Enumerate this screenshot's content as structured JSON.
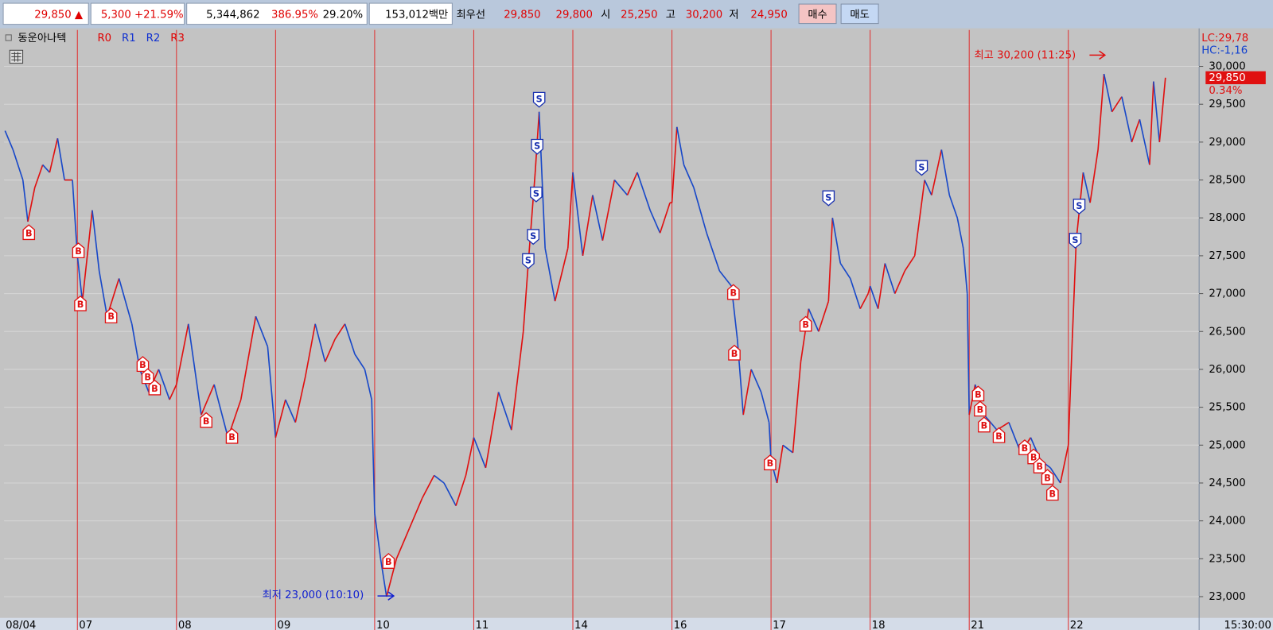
{
  "toolbar": {
    "items": [
      {
        "text": "29,850 ▲",
        "color": "#e00000"
      },
      {
        "text": "5,300 +21.59%",
        "color": "#e00000"
      },
      {
        "text": "5,344,862",
        "color": "#000000"
      },
      {
        "text": "386.95%",
        "color": "#e00000"
      },
      {
        "text": "29.20%",
        "color": "#000000"
      },
      {
        "text": "153,012백만",
        "color": "#000000"
      },
      {
        "text": "최우선",
        "color": "#000000"
      },
      {
        "text": "29,850",
        "color": "#e00000"
      },
      {
        "text": "29,800",
        "color": "#e00000"
      },
      {
        "text": "시",
        "color": "#000000"
      },
      {
        "text": "25,250",
        "color": "#e00000"
      },
      {
        "text": "고",
        "color": "#000000"
      },
      {
        "text": "30,200",
        "color": "#e00000"
      },
      {
        "text": "저",
        "color": "#000000"
      },
      {
        "text": "24,950",
        "color": "#e00000"
      }
    ],
    "buttons": [
      "매수",
      "매도"
    ]
  },
  "chart_data": {
    "type": "line",
    "title": "동운아나텍",
    "indicators": [
      {
        "name": "R0",
        "color": "#e00000"
      },
      {
        "name": "R1",
        "color": "#1030d0"
      },
      {
        "name": "R2",
        "color": "#1030d0"
      },
      {
        "name": "R3",
        "color": "#e00000"
      }
    ],
    "up_color": "#e01010",
    "down_color": "#1848c8",
    "x": [
      0.27,
      0.35,
      0.45,
      0.5,
      0.57,
      0.65,
      0.72,
      0.8,
      0.87,
      0.95,
      1.0,
      1.05,
      1.15,
      1.22,
      1.3,
      1.42,
      1.55,
      1.63,
      1.72,
      1.82,
      1.93,
      2.0,
      2.12,
      2.25,
      2.38,
      2.52,
      2.65,
      2.8,
      2.92,
      3.0,
      3.1,
      3.2,
      3.3,
      3.4,
      3.5,
      3.6,
      3.7,
      3.8,
      3.9,
      3.97,
      4.0,
      4.06,
      4.12,
      4.22,
      4.35,
      4.48,
      4.6,
      4.7,
      4.82,
      4.92,
      5.0,
      5.12,
      5.25,
      5.38,
      5.5,
      5.55,
      5.62,
      5.66,
      5.72,
      5.82,
      5.95,
      6.0,
      6.1,
      6.2,
      6.3,
      6.42,
      6.55,
      6.65,
      6.78,
      6.88,
      6.98,
      7.0,
      7.05,
      7.12,
      7.22,
      7.35,
      7.48,
      7.6,
      7.66,
      7.72,
      7.8,
      7.9,
      7.98,
      8.0,
      8.06,
      8.12,
      8.22,
      8.3,
      8.38,
      8.48,
      8.58,
      8.62,
      8.7,
      8.8,
      8.9,
      8.98,
      9.0,
      9.08,
      9.15,
      9.25,
      9.35,
      9.45,
      9.55,
      9.62,
      9.72,
      9.8,
      9.88,
      9.94,
      9.98,
      10.0,
      10.06,
      10.15,
      10.28,
      10.4,
      10.52,
      10.62,
      10.72,
      10.82,
      10.92,
      11.0,
      11.04,
      11.08,
      11.15,
      11.22,
      11.3,
      11.36,
      11.44,
      11.54,
      11.64,
      11.72,
      11.82,
      11.86,
      11.92,
      11.98
    ],
    "values": [
      29150,
      28900,
      28500,
      27950,
      28400,
      28700,
      28600,
      29050,
      28500,
      28500,
      27500,
      26900,
      28100,
      27300,
      26700,
      27200,
      26600,
      26000,
      25700,
      26000,
      25600,
      25800,
      26600,
      25400,
      25800,
      25100,
      25600,
      26700,
      26300,
      25100,
      25600,
      25300,
      25900,
      26600,
      26100,
      26400,
      26600,
      26200,
      26000,
      25600,
      24100,
      23500,
      23000,
      23500,
      23900,
      24300,
      24600,
      24500,
      24200,
      24600,
      25100,
      24700,
      25700,
      25200,
      26500,
      27400,
      28600,
      29400,
      27600,
      26900,
      27600,
      28600,
      27500,
      28300,
      27700,
      28500,
      28300,
      28600,
      28100,
      27800,
      28200,
      28200,
      29200,
      28700,
      28400,
      27800,
      27300,
      27100,
      26400,
      25400,
      26000,
      25700,
      25300,
      24800,
      24500,
      25000,
      24900,
      26100,
      26800,
      26500,
      26900,
      28000,
      27400,
      27200,
      26800,
      27000,
      27100,
      26800,
      27400,
      27000,
      27300,
      27500,
      28500,
      28300,
      28900,
      28300,
      28000,
      27600,
      27000,
      25400,
      25800,
      25400,
      25200,
      25300,
      24900,
      25100,
      24800,
      24700,
      24500,
      25000,
      26400,
      27700,
      28600,
      28200,
      28900,
      29900,
      29400,
      29600,
      29000,
      29300,
      28700,
      29800,
      29000,
      29850
    ],
    "signals": [
      {
        "label": "B",
        "x": 0.51,
        "y": 27800
      },
      {
        "label": "B",
        "x": 1.01,
        "y": 27560
      },
      {
        "label": "B",
        "x": 1.03,
        "y": 26860
      },
      {
        "label": "B",
        "x": 1.34,
        "y": 26700
      },
      {
        "label": "B",
        "x": 1.66,
        "y": 26060
      },
      {
        "label": "B",
        "x": 1.71,
        "y": 25900
      },
      {
        "label": "B",
        "x": 1.78,
        "y": 25750
      },
      {
        "label": "B",
        "x": 2.3,
        "y": 25320
      },
      {
        "label": "B",
        "x": 2.56,
        "y": 25110
      },
      {
        "label": "B",
        "x": 4.14,
        "y": 23460
      },
      {
        "label": "B",
        "x": 7.62,
        "y": 27010
      },
      {
        "label": "B",
        "x": 7.63,
        "y": 26210
      },
      {
        "label": "B",
        "x": 7.99,
        "y": 24760
      },
      {
        "label": "B",
        "x": 8.35,
        "y": 26590
      },
      {
        "label": "B",
        "x": 10.09,
        "y": 25670
      },
      {
        "label": "B",
        "x": 10.11,
        "y": 25470
      },
      {
        "label": "B",
        "x": 10.15,
        "y": 25260
      },
      {
        "label": "B",
        "x": 10.3,
        "y": 25120
      },
      {
        "label": "B",
        "x": 10.56,
        "y": 24960
      },
      {
        "label": "B",
        "x": 10.65,
        "y": 24840
      },
      {
        "label": "B",
        "x": 10.71,
        "y": 24720
      },
      {
        "label": "B",
        "x": 10.79,
        "y": 24570
      },
      {
        "label": "B",
        "x": 10.84,
        "y": 24360
      },
      {
        "label": "S",
        "x": 5.66,
        "y": 29570
      },
      {
        "label": "S",
        "x": 5.64,
        "y": 28950
      },
      {
        "label": "S",
        "x": 5.63,
        "y": 28320
      },
      {
        "label": "S",
        "x": 5.6,
        "y": 27760
      },
      {
        "label": "S",
        "x": 5.55,
        "y": 27440
      },
      {
        "label": "S",
        "x": 8.58,
        "y": 28270
      },
      {
        "label": "S",
        "x": 9.52,
        "y": 28670
      },
      {
        "label": "S",
        "x": 11.11,
        "y": 28160
      },
      {
        "label": "S",
        "x": 11.07,
        "y": 27710
      }
    ],
    "annotations": {
      "high": "최고 30,200 (11:25)",
      "low": "최저 23,000 (10:10)"
    },
    "xlim": [
      0.26,
      12.32
    ],
    "xticks": [
      {
        "value": 0.26,
        "label": "08/04"
      },
      {
        "value": 1,
        "label": "07"
      },
      {
        "value": 2,
        "label": "08"
      },
      {
        "value": 3,
        "label": "09"
      },
      {
        "value": 4,
        "label": "10"
      },
      {
        "value": 5,
        "label": "11"
      },
      {
        "value": 6,
        "label": "14"
      },
      {
        "value": 7,
        "label": "16"
      },
      {
        "value": 8,
        "label": "17"
      },
      {
        "value": 9,
        "label": "18"
      },
      {
        "value": 10,
        "label": "21"
      },
      {
        "value": 11,
        "label": "22"
      }
    ],
    "x_end_label": "15:30:00",
    "ylim": [
      22720,
      30480
    ],
    "yticks": [
      {
        "value": 23000,
        "label": "23,000"
      },
      {
        "value": 23500,
        "label": "23,500"
      },
      {
        "value": 24000,
        "label": "24,000"
      },
      {
        "value": 24500,
        "label": "24,500"
      },
      {
        "value": 25000,
        "label": "25,000"
      },
      {
        "value": 25500,
        "label": "25,500"
      },
      {
        "value": 26000,
        "label": "26,000"
      },
      {
        "value": 26500,
        "label": "26,500"
      },
      {
        "value": 27000,
        "label": "27,000"
      },
      {
        "value": 27500,
        "label": "27,500"
      },
      {
        "value": 28000,
        "label": "28,000"
      },
      {
        "value": 28500,
        "label": "28,500"
      },
      {
        "value": 29000,
        "label": "29,000"
      },
      {
        "value": 29500,
        "label": "29,500"
      },
      {
        "value": 30000,
        "label": "30,000"
      }
    ],
    "grid": true,
    "last_price": {
      "value": 29850,
      "label": "29,850"
    },
    "last_change": "0.34%",
    "lc_label": "LC:29,78",
    "hc_label": "HC:-1,16"
  }
}
